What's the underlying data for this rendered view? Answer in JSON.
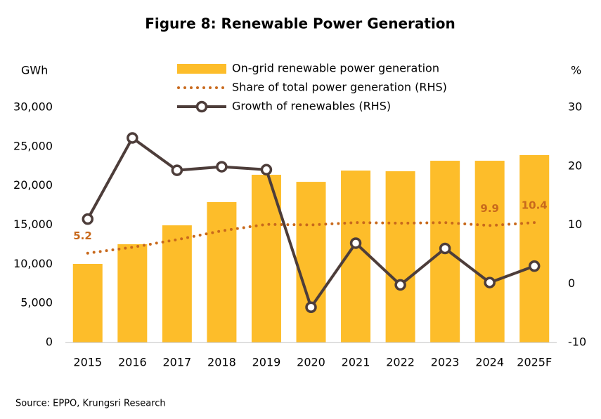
{
  "chart_data": {
    "type": "bar-line",
    "title": "Figure 8: Renewable Power Generation",
    "y_label": "GWh",
    "y2_label": "%",
    "source": "Source: EPPO, Krungsri Research",
    "categories": [
      "2015",
      "2016",
      "2017",
      "2018",
      "2019",
      "2020",
      "2021",
      "2022",
      "2023",
      "2024",
      "2025F"
    ],
    "series": [
      {
        "name": "On-grid renewable power generation",
        "type": "bar",
        "color": "#fdbd2a",
        "values": [
          10030,
          12540,
          14950,
          17910,
          21400,
          20500,
          21940,
          21850,
          23190,
          23190,
          23910
        ]
      },
      {
        "name": "Share of total power generation (RHS)",
        "type": "dotted-line",
        "color": "#c8691c",
        "axis": "y2",
        "values": [
          5.2,
          6.2,
          7.5,
          9.0,
          10.1,
          10.0,
          10.4,
          10.3,
          10.4,
          9.9,
          10.4
        ],
        "value_labels": [
          "5.2",
          null,
          null,
          null,
          null,
          null,
          null,
          null,
          null,
          "9.9",
          "10.4"
        ]
      },
      {
        "name": "Growth of renewables (RHS)",
        "type": "line",
        "color": "#4d3d3a",
        "axis": "y2",
        "values": [
          11.0,
          24.8,
          19.3,
          19.9,
          19.4,
          -4.0,
          6.9,
          -0.2,
          6.0,
          0.2,
          3.0
        ]
      }
    ],
    "ylim": [
      0,
      30000
    ],
    "yticks": [
      0,
      {
        "value": 5000,
        "label": "5,000"
      },
      {
        "value": 10000,
        "label": "10,000"
      },
      {
        "value": 15000,
        "label": "15,000"
      },
      {
        "value": 20000,
        "label": "20,000"
      },
      {
        "value": 25000,
        "label": "25,000"
      },
      {
        "value": 30000,
        "label": "30,000"
      }
    ],
    "y2lim": [
      -10,
      30
    ],
    "y2ticks": [
      -10,
      0,
      10,
      20,
      30
    ]
  }
}
